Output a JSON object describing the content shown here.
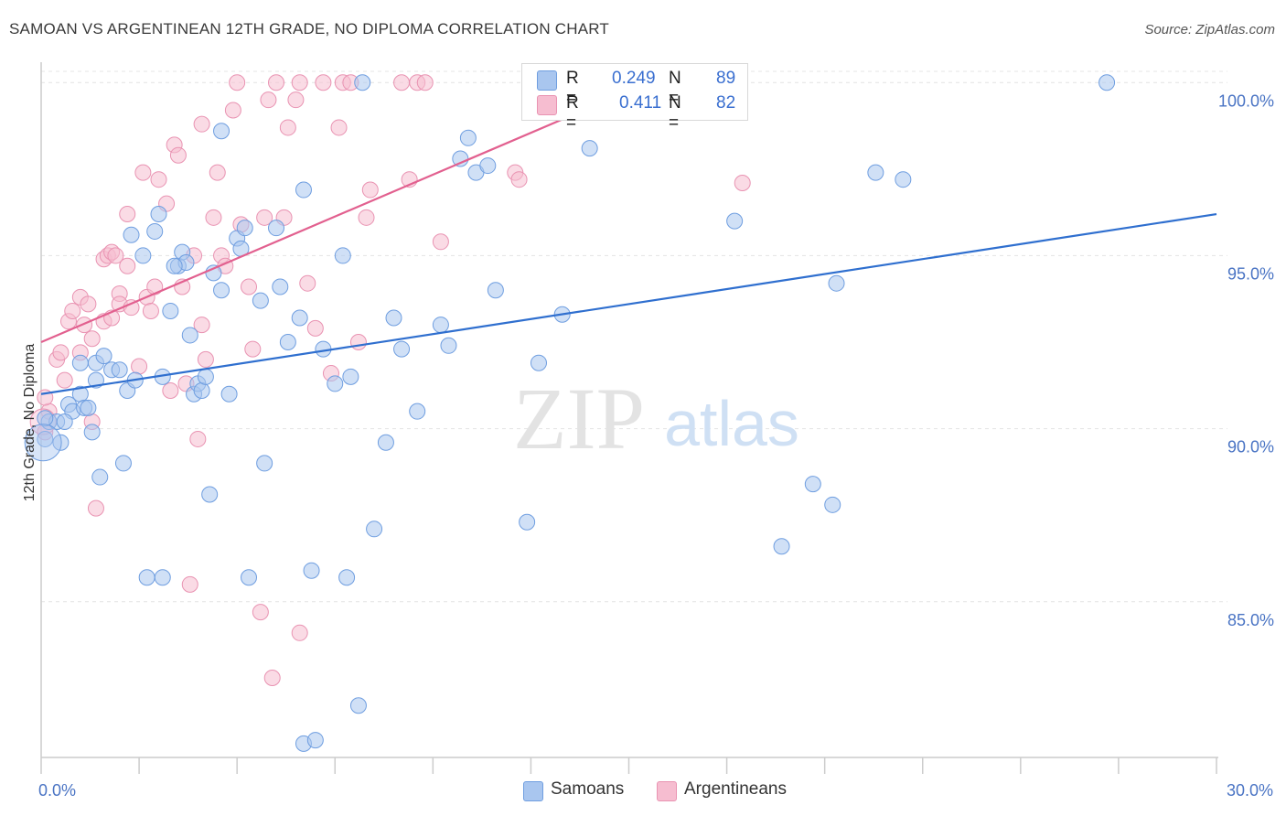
{
  "title": "SAMOAN VS ARGENTINEAN 12TH GRADE, NO DIPLOMA CORRELATION CHART",
  "source": "Source: ZipAtlas.com",
  "watermark": {
    "zip": "ZIP",
    "atlas": "atlas"
  },
  "legend": {
    "r_label": "R =",
    "n_label": "N =",
    "samoans": {
      "r": "0.249",
      "n": "89"
    },
    "argentineans": {
      "r": "0.411",
      "n": "82"
    }
  },
  "colors": {
    "samoans_fill": "#a9c6ef",
    "samoans_stroke": "#6f9ee0",
    "samoans_line": "#2f6fcf",
    "argentineans_fill": "#f6bdd0",
    "argentineans_stroke": "#e993b2",
    "argentineans_line": "#e2608f",
    "tick_text": "#4a74c4"
  },
  "chart_data": {
    "type": "scatter",
    "title": "SAMOAN VS ARGENTINEAN 12TH GRADE, NO DIPLOMA CORRELATION CHART",
    "xlabel": "",
    "ylabel": "12th Grade, No Diploma",
    "xlim": [
      0,
      30
    ],
    "ylim": [
      80.5,
      100.8
    ],
    "x_tick_labels": [
      {
        "value": 0,
        "label": "0.0%"
      },
      {
        "value": 30,
        "label": "30.0%"
      }
    ],
    "y_tick_labels": [
      {
        "value": 85,
        "label": "85.0%"
      },
      {
        "value": 90,
        "label": "90.0%"
      },
      {
        "value": 95,
        "label": "95.0%"
      },
      {
        "value": 100,
        "label": "100.0%"
      }
    ],
    "grid": true,
    "legend_position": "top-center and bottom",
    "series": [
      {
        "name": "Samoans",
        "trend": {
          "x": [
            0,
            30
          ],
          "y": [
            91.0,
            96.2
          ]
        },
        "points": [
          [
            0.1,
            89.7
          ],
          [
            0.2,
            90.2
          ],
          [
            0.4,
            90.2
          ],
          [
            0.5,
            89.6
          ],
          [
            0.7,
            90.7
          ],
          [
            0.8,
            90.5
          ],
          [
            1.0,
            91.0
          ],
          [
            1.1,
            90.6
          ],
          [
            1.0,
            91.9
          ],
          [
            1.4,
            91.9
          ],
          [
            1.3,
            89.9
          ],
          [
            1.4,
            91.4
          ],
          [
            1.5,
            88.6
          ],
          [
            1.6,
            92.1
          ],
          [
            1.8,
            91.7
          ],
          [
            2.0,
            91.7
          ],
          [
            2.2,
            91.1
          ],
          [
            2.1,
            89.0
          ],
          [
            2.4,
            91.4
          ],
          [
            2.3,
            95.6
          ],
          [
            2.6,
            95.0
          ],
          [
            2.9,
            95.7
          ],
          [
            3.1,
            91.5
          ],
          [
            3.0,
            96.2
          ],
          [
            3.3,
            93.4
          ],
          [
            3.5,
            94.7
          ],
          [
            3.6,
            95.1
          ],
          [
            3.7,
            94.8
          ],
          [
            3.8,
            92.7
          ],
          [
            3.9,
            91.0
          ],
          [
            4.0,
            91.3
          ],
          [
            4.1,
            91.1
          ],
          [
            4.2,
            91.5
          ],
          [
            4.3,
            88.1
          ],
          [
            4.4,
            94.5
          ],
          [
            4.6,
            98.6
          ],
          [
            4.6,
            94.0
          ],
          [
            4.8,
            91.0
          ],
          [
            5.0,
            95.5
          ],
          [
            5.1,
            95.2
          ],
          [
            5.2,
            95.8
          ],
          [
            5.3,
            85.7
          ],
          [
            5.6,
            93.7
          ],
          [
            5.7,
            89.0
          ],
          [
            6.0,
            95.8
          ],
          [
            6.1,
            94.1
          ],
          [
            6.3,
            92.5
          ],
          [
            6.6,
            93.2
          ],
          [
            6.7,
            96.9
          ],
          [
            6.7,
            80.9
          ],
          [
            6.9,
            85.9
          ],
          [
            7.0,
            81.0
          ],
          [
            7.2,
            92.3
          ],
          [
            7.5,
            91.3
          ],
          [
            7.7,
            95.0
          ],
          [
            7.8,
            85.7
          ],
          [
            7.9,
            91.5
          ],
          [
            8.1,
            82.0
          ],
          [
            8.2,
            100.0
          ],
          [
            8.5,
            87.1
          ],
          [
            8.8,
            89.6
          ],
          [
            9.0,
            93.2
          ],
          [
            9.2,
            92.3
          ],
          [
            9.6,
            90.5
          ],
          [
            10.2,
            93.0
          ],
          [
            10.4,
            92.4
          ],
          [
            10.7,
            97.8
          ],
          [
            10.9,
            98.4
          ],
          [
            11.1,
            97.4
          ],
          [
            11.4,
            97.6
          ],
          [
            11.6,
            94.0
          ],
          [
            12.4,
            87.3
          ],
          [
            12.7,
            91.9
          ],
          [
            13.3,
            93.3
          ],
          [
            14.0,
            98.1
          ],
          [
            17.7,
            96.0
          ],
          [
            18.9,
            86.6
          ],
          [
            19.7,
            88.4
          ],
          [
            20.2,
            87.8
          ],
          [
            20.3,
            94.2
          ],
          [
            21.3,
            97.4
          ],
          [
            22.0,
            97.2
          ],
          [
            27.2,
            100.0
          ],
          [
            2.7,
            85.7
          ],
          [
            3.1,
            85.7
          ],
          [
            0.1,
            90.3
          ],
          [
            0.6,
            90.2
          ],
          [
            1.2,
            90.6
          ],
          [
            3.4,
            94.7
          ]
        ]
      },
      {
        "name": "Argentineans",
        "trend": {
          "x": [
            0,
            15.5
          ],
          "y": [
            92.5,
            100.0
          ]
        },
        "points": [
          [
            0.1,
            89.9
          ],
          [
            0.2,
            90.5
          ],
          [
            0.1,
            90.9
          ],
          [
            0.4,
            92.0
          ],
          [
            0.5,
            92.2
          ],
          [
            0.6,
            91.4
          ],
          [
            0.7,
            93.1
          ],
          [
            0.8,
            93.4
          ],
          [
            1.0,
            92.2
          ],
          [
            1.0,
            93.8
          ],
          [
            1.1,
            93.0
          ],
          [
            1.2,
            93.6
          ],
          [
            1.3,
            90.2
          ],
          [
            1.3,
            92.6
          ],
          [
            1.4,
            87.7
          ],
          [
            1.6,
            93.1
          ],
          [
            1.6,
            94.9
          ],
          [
            1.7,
            95.0
          ],
          [
            1.8,
            93.2
          ],
          [
            1.8,
            95.1
          ],
          [
            2.0,
            93.9
          ],
          [
            2.0,
            93.6
          ],
          [
            2.2,
            94.7
          ],
          [
            2.3,
            93.5
          ],
          [
            2.2,
            96.2
          ],
          [
            2.5,
            91.8
          ],
          [
            2.6,
            97.4
          ],
          [
            2.7,
            93.8
          ],
          [
            2.8,
            93.4
          ],
          [
            2.9,
            94.1
          ],
          [
            3.0,
            97.2
          ],
          [
            3.2,
            96.5
          ],
          [
            3.3,
            91.1
          ],
          [
            3.4,
            98.2
          ],
          [
            3.5,
            97.9
          ],
          [
            3.7,
            91.3
          ],
          [
            3.8,
            85.5
          ],
          [
            3.9,
            95.0
          ],
          [
            4.0,
            89.7
          ],
          [
            4.1,
            93.0
          ],
          [
            4.1,
            98.8
          ],
          [
            4.2,
            92.0
          ],
          [
            4.4,
            96.1
          ],
          [
            4.5,
            97.4
          ],
          [
            4.6,
            95.0
          ],
          [
            4.7,
            94.7
          ],
          [
            4.9,
            99.2
          ],
          [
            5.0,
            100.0
          ],
          [
            5.1,
            95.9
          ],
          [
            5.3,
            94.1
          ],
          [
            5.4,
            92.3
          ],
          [
            5.6,
            84.7
          ],
          [
            5.7,
            96.1
          ],
          [
            5.8,
            99.5
          ],
          [
            5.9,
            82.8
          ],
          [
            6.0,
            100.0
          ],
          [
            6.2,
            96.1
          ],
          [
            6.3,
            98.7
          ],
          [
            6.5,
            99.5
          ],
          [
            6.6,
            100.0
          ],
          [
            6.6,
            84.1
          ],
          [
            6.8,
            94.2
          ],
          [
            7.0,
            92.9
          ],
          [
            7.2,
            100.0
          ],
          [
            7.4,
            91.6
          ],
          [
            7.6,
            98.7
          ],
          [
            7.7,
            100.0
          ],
          [
            7.9,
            100.0
          ],
          [
            8.1,
            92.5
          ],
          [
            8.3,
            96.1
          ],
          [
            8.4,
            96.9
          ],
          [
            9.2,
            100.0
          ],
          [
            9.4,
            97.2
          ],
          [
            9.6,
            100.0
          ],
          [
            9.8,
            100.0
          ],
          [
            10.2,
            95.4
          ],
          [
            12.1,
            97.4
          ],
          [
            12.2,
            97.2
          ],
          [
            15.0,
            100.0
          ],
          [
            17.9,
            97.1
          ],
          [
            1.9,
            95.0
          ],
          [
            3.6,
            94.1
          ]
        ]
      }
    ]
  },
  "bottom_legend": {
    "samoans": "Samoans",
    "argentineans": "Argentineans"
  }
}
